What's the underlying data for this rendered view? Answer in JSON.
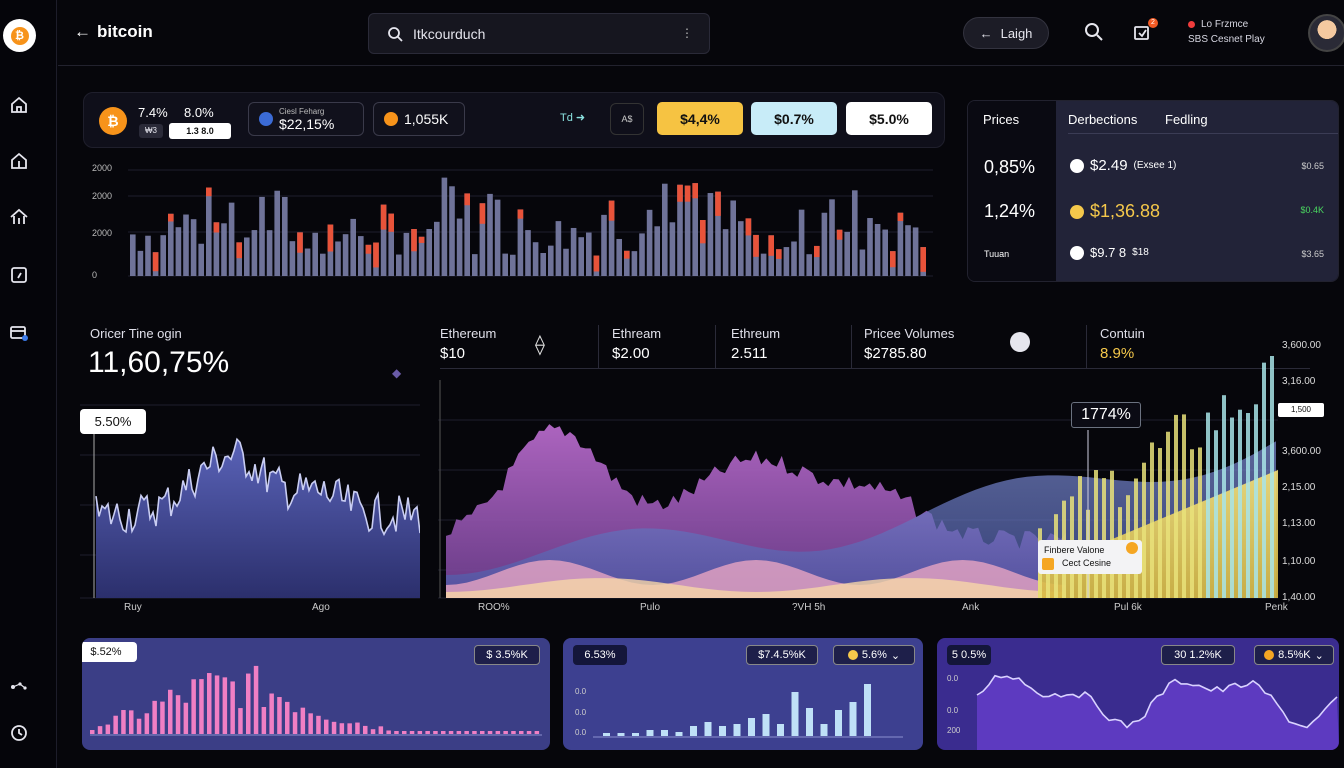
{
  "header": {
    "back_label": "bitcoin",
    "search_text": "Itkcourduch",
    "login_label": "Laigh",
    "user_line1": "Lo  Frzmce",
    "user_line2": "SBS  Cesnet Play"
  },
  "stats": {
    "coin_symbol": "₿",
    "pct1": "7.4%",
    "pct2": "8.0%",
    "badge_a": "₩3",
    "badge_b": "1.3 8.0",
    "pill1_small": "Ciesl Feharg",
    "pill1_value": "$22,15%",
    "pill2_value": "1,055K",
    "arrow_label": "Td ➜",
    "sym_label": "A$",
    "chip1": "$4,4%",
    "chip2": "$0.7%",
    "chip3": "$5.0%"
  },
  "top_chart_axis": [
    "2000",
    "2000",
    "2000",
    "0"
  ],
  "prices": {
    "title": "Prices",
    "tab1": "Derbections",
    "tab2": "Fedling",
    "left_values": [
      "0,85%",
      "1,24%"
    ],
    "left_small": "Tuuan",
    "rows": [
      {
        "value": "$2.49",
        "suffix": "(Exsee 1)",
        "side": "$0.65"
      },
      {
        "value": "$1,36.88",
        "suffix": "",
        "side": "$0.4K"
      },
      {
        "value": "$9.7 8",
        "suffix": "$18",
        "side": "$3.65"
      }
    ],
    "colors": {
      "row2": "#f5c84b",
      "side2": "#4ad760"
    }
  },
  "section2": {
    "left_label": "Oricer Tine ogin",
    "left_value": "11,60,75%",
    "tooltip": "5.50%",
    "cols": [
      {
        "label": "Ethereum",
        "value": "$10"
      },
      {
        "label": "Ethream",
        "value": "$2.00"
      },
      {
        "label": "Ethreum",
        "value": "2.511"
      },
      {
        "label": "Pricee Volumes",
        "value": "$2785.80"
      },
      {
        "label": "Contuin",
        "value": "8.9%"
      }
    ],
    "left_x_labels": [
      "Ruy",
      "Ago"
    ],
    "right_x_labels": [
      "ROO%",
      "Pulo",
      "?VH 5h",
      "Ank",
      "Pul 6k",
      "Penk"
    ],
    "y_labels": [
      "3,600.00",
      "3,16.00",
      "1,500",
      "3,600.00",
      "2,15.00",
      "1,13.00",
      "1,10.00",
      "1,40.00"
    ],
    "value_callout": "1774%",
    "legend_title": "Finbere Valone",
    "legend_line": "Cect Cesine"
  },
  "bottom_cards": [
    {
      "chip_left": "$.52%",
      "chip_right": "$ 3.5%K"
    },
    {
      "chip_left": "6.53%",
      "chip_mid": "$7.4.5%K",
      "chip_right": "5.6%",
      "axis": [
        "0.0",
        "0.0",
        "0.0"
      ]
    },
    {
      "chip_left": "5 0.5%",
      "chip_mid": "30 1.2%K",
      "chip_right": "8.5%K",
      "axis": [
        "0.0",
        "0.0",
        "200"
      ]
    }
  ]
}
